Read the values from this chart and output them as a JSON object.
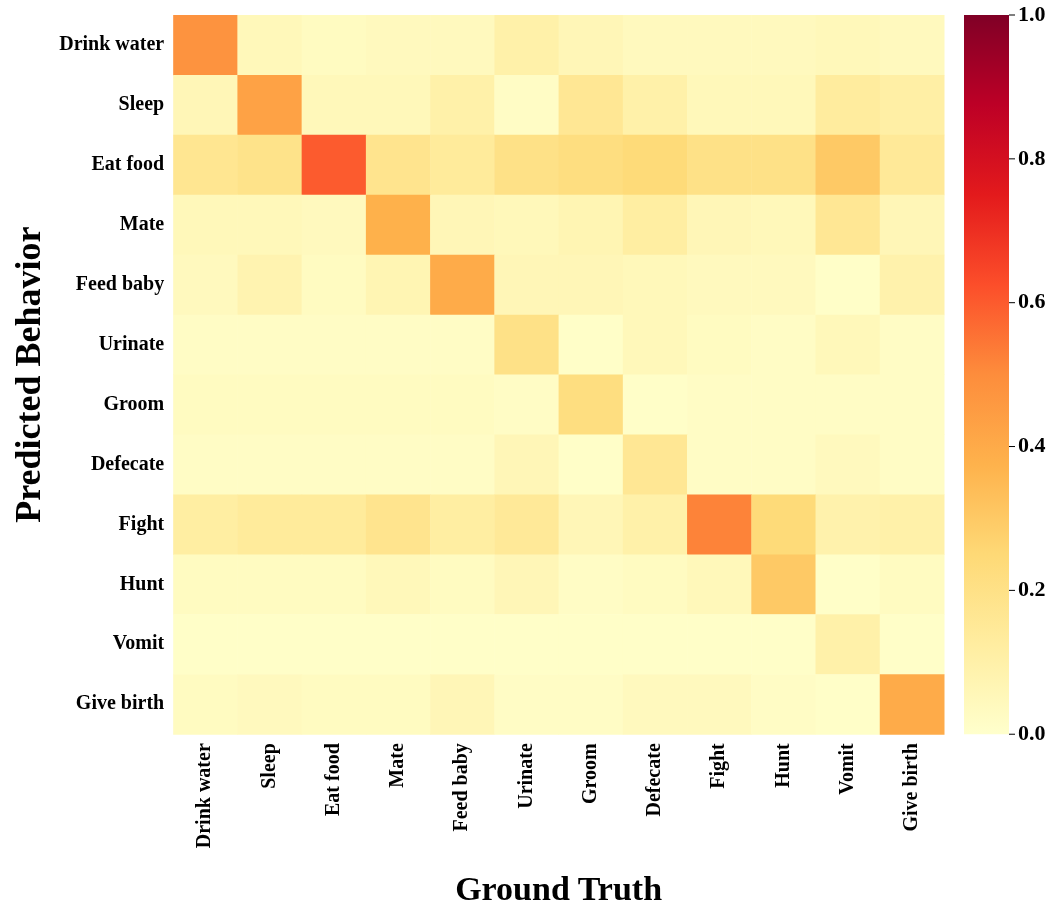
{
  "chart_data": {
    "type": "heatmap",
    "xlabel": "Ground Truth",
    "ylabel": "Predicted Behavior",
    "categories": [
      "Drink water",
      "Sleep",
      "Eat food",
      "Mate",
      "Feed baby",
      "Urinate",
      "Groom",
      "Defecate",
      "Fight",
      "Hunt",
      "Vomit",
      "Give birth"
    ],
    "y_categories": [
      "Drink water",
      "Sleep",
      "Eat food",
      "Mate",
      "Feed baby",
      "Urinate",
      "Groom",
      "Defecate",
      "Fight",
      "Hunt",
      "Vomit",
      "Give birth"
    ],
    "cells": [
      [
        0.48,
        0.05,
        0.03,
        0.04,
        0.04,
        0.1,
        0.06,
        0.04,
        0.04,
        0.04,
        0.05,
        0.04
      ],
      [
        0.06,
        0.43,
        0.05,
        0.05,
        0.1,
        0.02,
        0.16,
        0.1,
        0.05,
        0.05,
        0.13,
        0.11
      ],
      [
        0.17,
        0.19,
        0.6,
        0.18,
        0.14,
        0.2,
        0.22,
        0.24,
        0.2,
        0.2,
        0.3,
        0.15
      ],
      [
        0.05,
        0.05,
        0.04,
        0.38,
        0.06,
        0.05,
        0.07,
        0.12,
        0.06,
        0.05,
        0.16,
        0.06
      ],
      [
        0.04,
        0.08,
        0.03,
        0.07,
        0.4,
        0.06,
        0.06,
        0.05,
        0.04,
        0.04,
        0.01,
        0.09
      ],
      [
        0.02,
        0.02,
        0.02,
        0.02,
        0.02,
        0.2,
        0.01,
        0.05,
        0.03,
        0.02,
        0.05,
        0.02
      ],
      [
        0.03,
        0.03,
        0.03,
        0.03,
        0.03,
        0.02,
        0.22,
        0.01,
        0.02,
        0.02,
        0.02,
        0.02
      ],
      [
        0.02,
        0.02,
        0.02,
        0.02,
        0.02,
        0.06,
        0.01,
        0.16,
        0.02,
        0.02,
        0.04,
        0.02
      ],
      [
        0.12,
        0.14,
        0.14,
        0.18,
        0.12,
        0.15,
        0.06,
        0.1,
        0.52,
        0.24,
        0.09,
        0.1
      ],
      [
        0.03,
        0.03,
        0.03,
        0.05,
        0.03,
        0.06,
        0.02,
        0.03,
        0.05,
        0.3,
        0.01,
        0.03
      ],
      [
        0.01,
        0.01,
        0.01,
        0.01,
        0.01,
        0.01,
        0.01,
        0.01,
        0.01,
        0.01,
        0.1,
        0.01
      ],
      [
        0.03,
        0.04,
        0.03,
        0.03,
        0.06,
        0.02,
        0.02,
        0.04,
        0.04,
        0.02,
        0.01,
        0.4
      ]
    ],
    "clim": [
      0,
      1
    ],
    "cticks": [
      {
        "value": 0,
        "label": "0.0"
      },
      0.2,
      0.4,
      0.6,
      0.8,
      {
        "value": 1,
        "label": "1.0"
      }
    ]
  }
}
